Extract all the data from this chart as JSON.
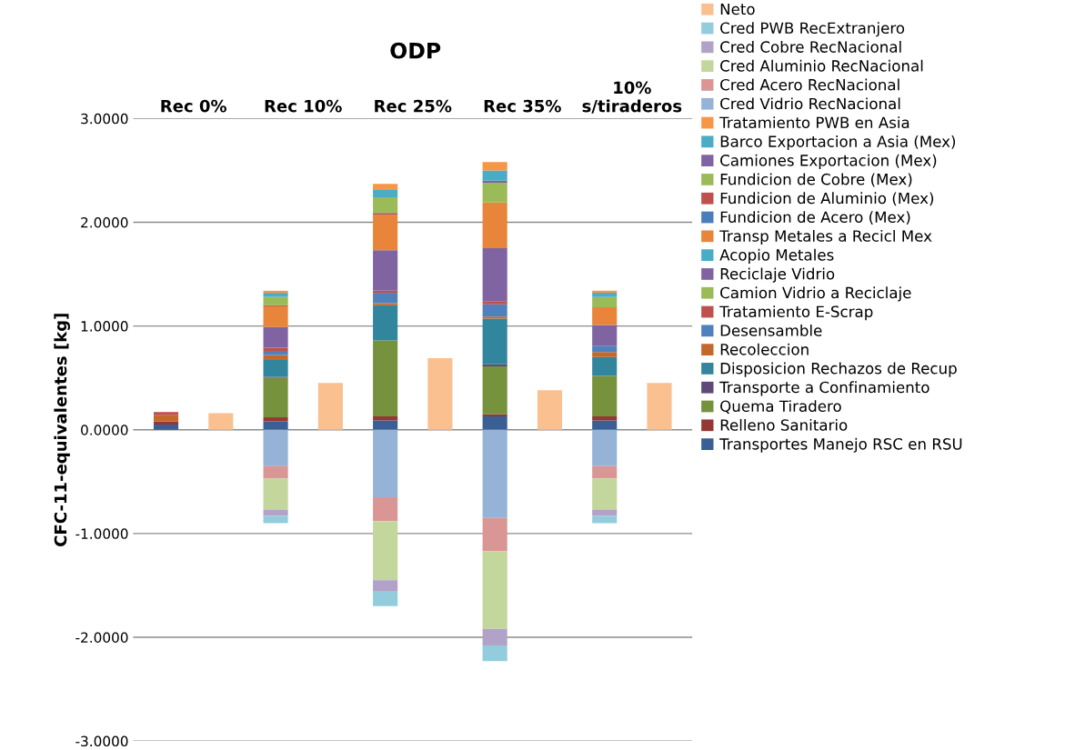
{
  "chart_data": {
    "type": "bar",
    "stacked": true,
    "title": "ODP",
    "ylabel": "CFC-11-equivalentes [kg]",
    "categories": [
      null,
      null,
      null,
      null,
      null,
      null,
      null,
      null,
      null,
      null
    ],
    "annotations": [
      "Rec 0%",
      "Rec 10%",
      "Rec 25%",
      "Rec 35%",
      "10%\ns/tiraderos"
    ],
    "ylim": [
      -3,
      3
    ],
    "yticks": [
      {
        "value": -3,
        "label": "-3.0000"
      },
      {
        "value": -2,
        "label": "-2.0000"
      },
      {
        "value": -1,
        "label": "-1.0000"
      },
      {
        "value": 0,
        "label": "0.0000"
      },
      {
        "value": 1,
        "label": "1.0000"
      },
      {
        "value": 2,
        "label": "2.0000"
      },
      {
        "value": 3,
        "label": "3.0000"
      }
    ],
    "grid": "y",
    "legend": "right",
    "tick_labels": "y",
    "series": [
      {
        "name": "Transportes Manejo RSC en RSU",
        "color": "#3a5f94",
        "values": [
          0.05,
          null,
          0.08,
          null,
          0.09,
          null,
          0.13,
          null,
          0.09,
          null
        ]
      },
      {
        "name": "Relleno Sanitario",
        "color": "#953735",
        "values": [
          0.03,
          null,
          0.04,
          null,
          0.04,
          null,
          0.02,
          null,
          0.04,
          null
        ]
      },
      {
        "name": "Quema Tiradero",
        "color": "#76923c",
        "values": [
          null,
          null,
          0.38,
          null,
          0.73,
          null,
          0.46,
          null,
          0.39,
          null
        ]
      },
      {
        "name": "Transporte a Confinamiento",
        "color": "#5f497a",
        "values": [
          null,
          null,
          0.01,
          null,
          null,
          null,
          0.02,
          null,
          null,
          null
        ]
      },
      {
        "name": "Disposicion Rechazos de Recup",
        "color": "#31859c",
        "values": [
          null,
          null,
          0.17,
          null,
          0.34,
          null,
          0.44,
          null,
          0.18,
          null
        ]
      },
      {
        "name": "Recoleccion",
        "color": "#c4692b",
        "values": [
          0.06,
          null,
          0.04,
          null,
          0.02,
          null,
          0.02,
          null,
          0.05,
          null
        ]
      },
      {
        "name": "Desensamble",
        "color": "#4f81bd",
        "values": [
          null,
          null,
          0.04,
          null,
          0.1,
          null,
          0.12,
          null,
          0.06,
          null
        ]
      },
      {
        "name": "Tratamiento E-Scrap",
        "color": "#c0504d",
        "values": [
          0.03,
          null,
          0.03,
          null,
          0.02,
          null,
          0.03,
          null,
          null,
          null
        ]
      },
      {
        "name": "Camion Vidrio a Reciclaje",
        "color": "#9bbb59",
        "values": [
          null,
          null,
          null,
          null,
          null,
          null,
          null,
          null,
          null,
          null
        ]
      },
      {
        "name": "Reciclaje Vidrio",
        "color": "#8064a2",
        "values": [
          null,
          null,
          0.2,
          null,
          0.39,
          null,
          0.51,
          null,
          0.2,
          null
        ]
      },
      {
        "name": "Acopio Metales",
        "color": "#4bacc6",
        "values": [
          null,
          null,
          null,
          null,
          null,
          null,
          null,
          null,
          null,
          null
        ]
      },
      {
        "name": "Transp Metales a Recicl Mex",
        "color": "#e8853a",
        "values": [
          null,
          null,
          0.2,
          null,
          0.34,
          null,
          0.44,
          null,
          0.17,
          null
        ]
      },
      {
        "name": "Fundicion de Acero (Mex)",
        "color": "#4a7ebb",
        "values": [
          null,
          null,
          null,
          null,
          null,
          null,
          null,
          null,
          null,
          null
        ]
      },
      {
        "name": "Fundicion de Aluminio (Mex)",
        "color": "#c0504d",
        "values": [
          null,
          null,
          0.01,
          null,
          0.02,
          null,
          null,
          null,
          null,
          null
        ]
      },
      {
        "name": "Fundicion de Cobre (Mex)",
        "color": "#9bbb59",
        "values": [
          null,
          null,
          0.08,
          null,
          0.15,
          null,
          0.19,
          null,
          0.1,
          null
        ]
      },
      {
        "name": "Camiones Exportacion (Mex)",
        "color": "#8064a2",
        "values": [
          null,
          null,
          null,
          null,
          null,
          null,
          0.02,
          null,
          null,
          null
        ]
      },
      {
        "name": "Barco Exportacion a Asia (Mex)",
        "color": "#4bacc6",
        "values": [
          null,
          null,
          0.04,
          null,
          0.07,
          null,
          0.1,
          null,
          0.04,
          null
        ]
      },
      {
        "name": "Tratamiento PWB en Asia",
        "color": "#f79646",
        "values": [
          null,
          null,
          0.02,
          null,
          0.06,
          null,
          0.08,
          null,
          0.02,
          null
        ]
      },
      {
        "name": "Cred Vidrio RecNacional",
        "color": "#95b3d7",
        "values": [
          null,
          null,
          -0.35,
          null,
          -0.65,
          null,
          -0.85,
          null,
          -0.35,
          null
        ]
      },
      {
        "name": "Cred Acero RecNacional",
        "color": "#d99694",
        "values": [
          null,
          null,
          -0.12,
          null,
          -0.23,
          null,
          -0.32,
          null,
          -0.12,
          null
        ]
      },
      {
        "name": "Cred Aluminio RecNacional",
        "color": "#c3d69b",
        "values": [
          null,
          null,
          -0.3,
          null,
          -0.57,
          null,
          -0.75,
          null,
          -0.3,
          null
        ]
      },
      {
        "name": "Cred Cobre RecNacional",
        "color": "#b2a2c7",
        "values": [
          null,
          null,
          -0.06,
          null,
          -0.11,
          null,
          -0.16,
          null,
          -0.06,
          null
        ]
      },
      {
        "name": "Cred PWB RecExtranjero",
        "color": "#93cddd",
        "values": [
          null,
          null,
          -0.07,
          null,
          -0.14,
          null,
          -0.15,
          null,
          -0.07,
          null
        ]
      },
      {
        "name": "Neto",
        "color": "#fac090",
        "values": [
          null,
          0.16,
          null,
          0.45,
          null,
          0.69,
          null,
          0.38,
          null,
          0.45
        ]
      }
    ]
  }
}
